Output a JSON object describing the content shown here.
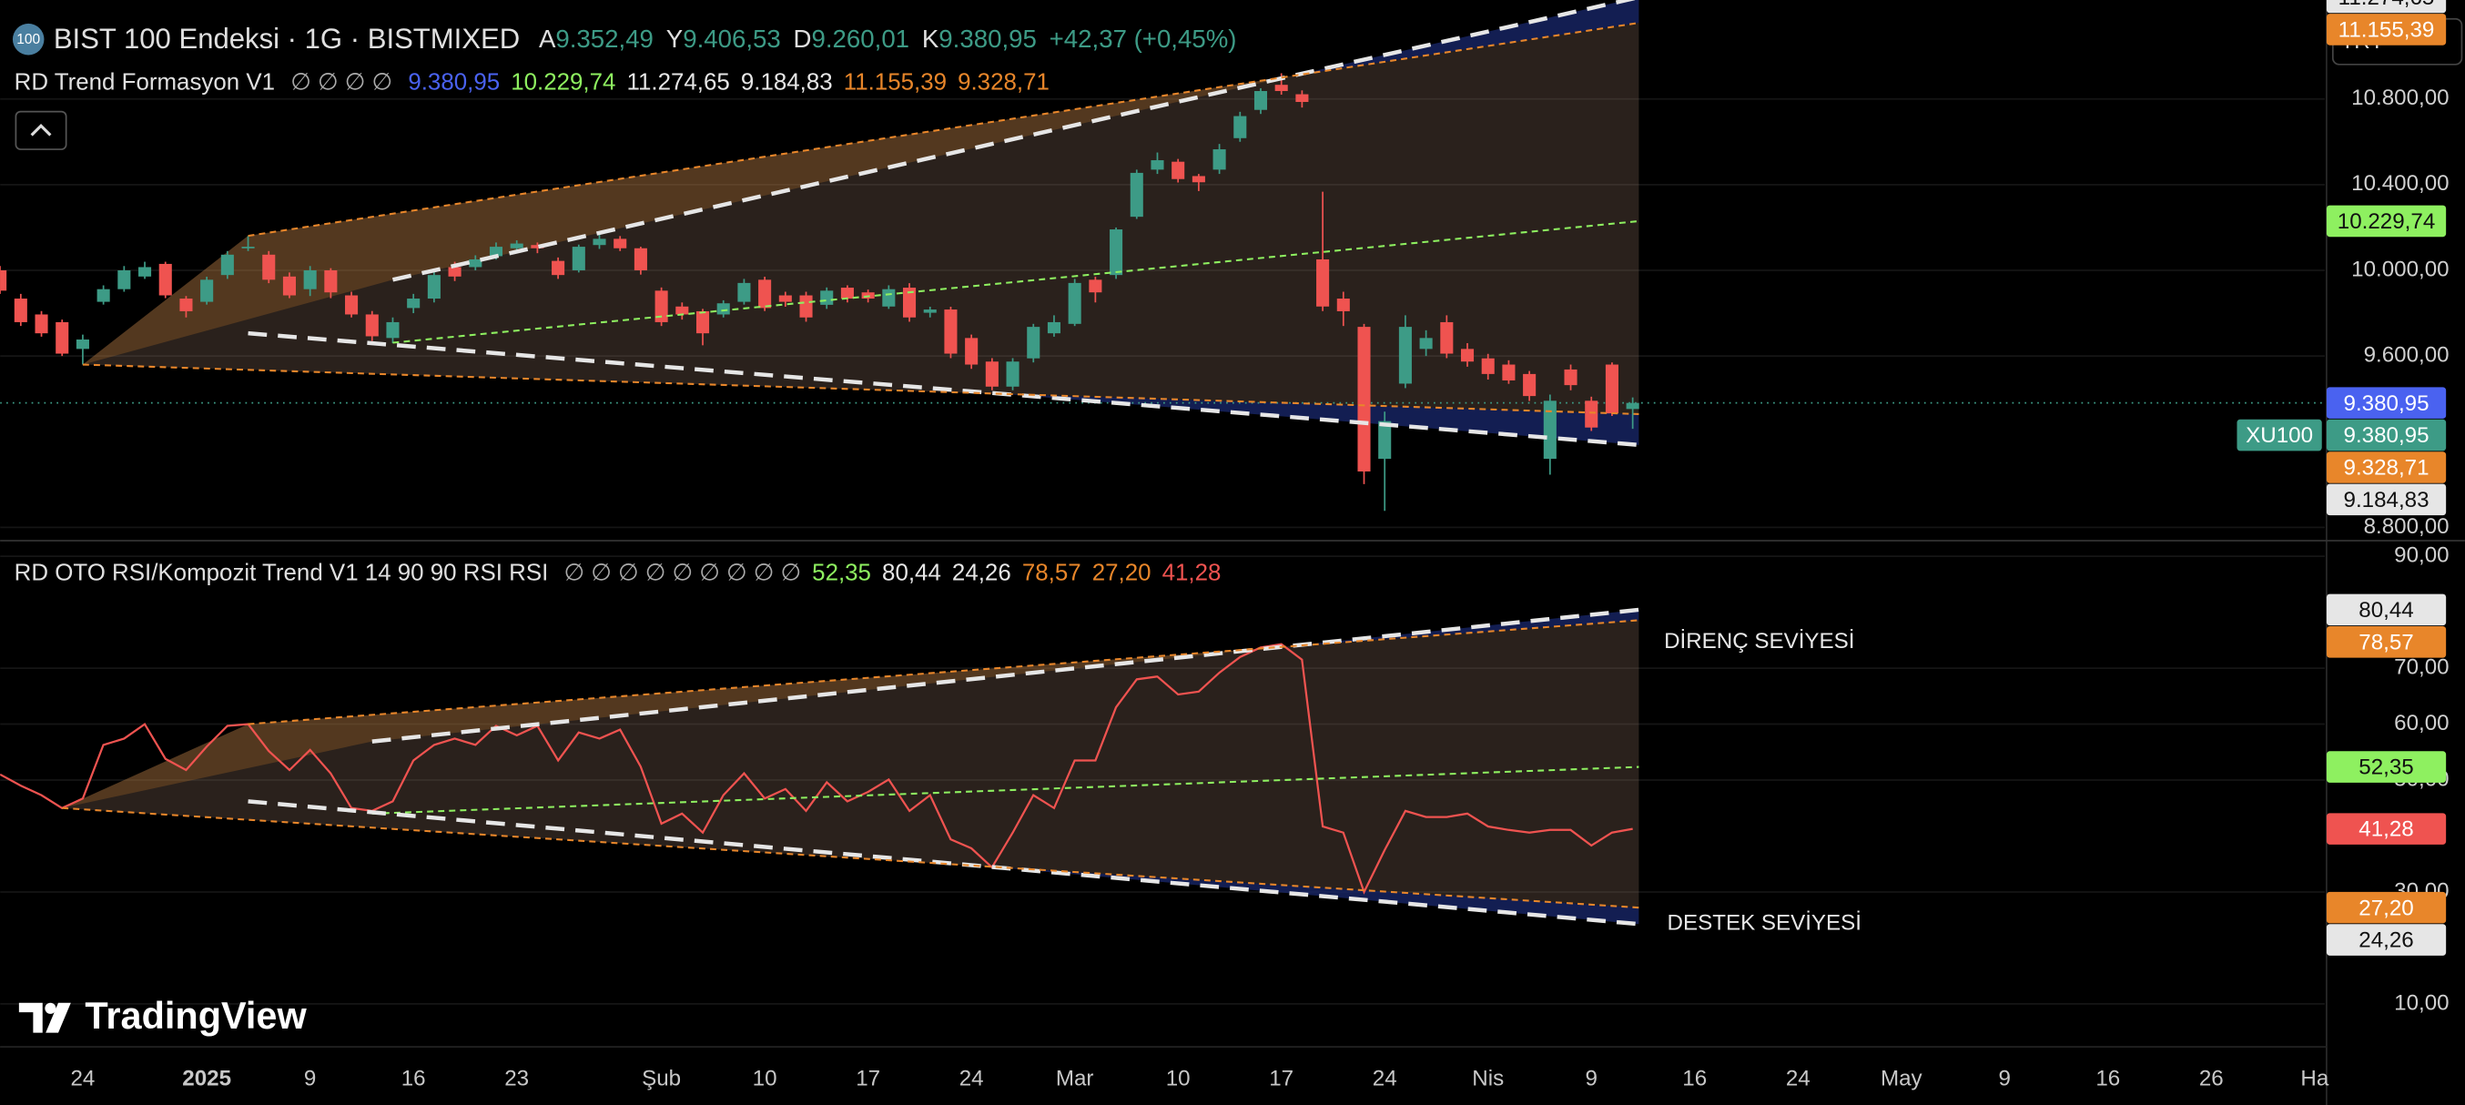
{
  "brand": "TradingView",
  "currency": "TRY",
  "chart_data": [
    {
      "type": "candlestick",
      "title": "BIST 100 Endeksi · 1G · BISTMIXED",
      "logo": "100",
      "ohlc_names": [
        "A",
        "Y",
        "D",
        "K"
      ],
      "ohlc_labels": [
        "9.352,49",
        "9.406,53",
        "9.260,01",
        "9.380,95"
      ],
      "change": "+42,37 (+0,45%)",
      "up_color": "#3d9b86",
      "down_color": "#ef5350",
      "xlim": [
        0,
        112.5
      ],
      "xticks": [
        {
          "value": 4,
          "label": "24"
        },
        {
          "value": 10,
          "label": "2025"
        },
        {
          "value": 15,
          "label": "9"
        },
        {
          "value": 20,
          "label": "16"
        },
        {
          "value": 25,
          "label": "23"
        },
        {
          "value": 32,
          "label": "Şub"
        },
        {
          "value": 37,
          "label": "10"
        },
        {
          "value": 42,
          "label": "17"
        },
        {
          "value": 47,
          "label": "24"
        },
        {
          "value": 52,
          "label": "Mar"
        },
        {
          "value": 57,
          "label": "10"
        },
        {
          "value": 62,
          "label": "17"
        },
        {
          "value": 67,
          "label": "24"
        },
        {
          "value": 72,
          "label": "Nis"
        },
        {
          "value": 77,
          "label": "9"
        },
        {
          "value": 82,
          "label": "16"
        },
        {
          "value": 87,
          "label": "24"
        },
        {
          "value": 92,
          "label": "May"
        },
        {
          "value": 97,
          "label": "9"
        },
        {
          "value": 102,
          "label": "16"
        },
        {
          "value": 107,
          "label": "26"
        },
        {
          "value": 112,
          "label": "Ha"
        }
      ],
      "ylim": [
        8745,
        11262
      ],
      "yticks": [
        {
          "value": 10800,
          "label": "10.800,00"
        },
        {
          "value": 10400,
          "label": "10.400,00"
        },
        {
          "value": 10000,
          "label": "10.000,00"
        },
        {
          "value": 9600,
          "label": "9.600,00"
        },
        {
          "value": 8800,
          "label": "8.800,00"
        }
      ],
      "grid": true,
      "ohlc": [
        [
          10000,
          10020,
          9890,
          9905
        ],
        [
          9868,
          9890,
          9740,
          9758
        ],
        [
          9794,
          9810,
          9690,
          9706
        ],
        [
          9758,
          9770,
          9600,
          9611
        ],
        [
          9633,
          9700,
          9560,
          9677
        ],
        [
          9853,
          9930,
          9840,
          9912
        ],
        [
          9912,
          10020,
          9900,
          10000
        ],
        [
          9971,
          10040,
          9960,
          10015
        ],
        [
          10030,
          10040,
          9870,
          9883
        ],
        [
          9868,
          9880,
          9780,
          9809
        ],
        [
          9853,
          9970,
          9840,
          9956
        ],
        [
          9978,
          10090,
          9960,
          10073
        ],
        [
          10103,
          10160,
          10090,
          10110
        ],
        [
          10073,
          10090,
          9940,
          9956
        ],
        [
          9971,
          9990,
          9870,
          9883
        ],
        [
          9912,
          10020,
          9880,
          10000
        ],
        [
          10000,
          10010,
          9870,
          9897
        ],
        [
          9883,
          9900,
          9780,
          9794
        ],
        [
          9794,
          9810,
          9670,
          9692
        ],
        [
          9684,
          9780,
          9660,
          9758
        ],
        [
          9824,
          9890,
          9800,
          9868
        ],
        [
          9868,
          10000,
          9850,
          9978
        ],
        [
          10015,
          10040,
          9950,
          9971
        ],
        [
          10015,
          10070,
          10000,
          10051
        ],
        [
          10066,
          10130,
          10050,
          10110
        ],
        [
          10103,
          10140,
          10090,
          10125
        ],
        [
          10118,
          10130,
          10080,
          10103
        ],
        [
          10044,
          10060,
          9960,
          9978
        ],
        [
          10000,
          10120,
          9990,
          10110
        ],
        [
          10118,
          10180,
          10100,
          10147
        ],
        [
          10147,
          10160,
          10090,
          10103
        ],
        [
          10103,
          10110,
          9980,
          10000
        ],
        [
          9905,
          9920,
          9740,
          9758
        ],
        [
          9831,
          9850,
          9770,
          9794
        ],
        [
          9809,
          9820,
          9650,
          9706
        ],
        [
          9794,
          9860,
          9780,
          9846
        ],
        [
          9853,
          9960,
          9840,
          9941
        ],
        [
          9956,
          9970,
          9810,
          9824
        ],
        [
          9883,
          9900,
          9830,
          9853
        ],
        [
          9883,
          9900,
          9760,
          9780
        ],
        [
          9839,
          9920,
          9820,
          9905
        ],
        [
          9919,
          9930,
          9850,
          9868
        ],
        [
          9897,
          9910,
          9850,
          9868
        ],
        [
          9831,
          9930,
          9820,
          9912
        ],
        [
          9919,
          9940,
          9760,
          9780
        ],
        [
          9802,
          9830,
          9780,
          9817
        ],
        [
          9817,
          9830,
          9590,
          9611
        ],
        [
          9684,
          9700,
          9540,
          9560
        ],
        [
          9574,
          9590,
          9440,
          9457
        ],
        [
          9457,
          9590,
          9440,
          9574
        ],
        [
          9589,
          9750,
          9570,
          9736
        ],
        [
          9706,
          9790,
          9690,
          9758
        ],
        [
          9750,
          9960,
          9740,
          9941
        ],
        [
          9956,
          9970,
          9850,
          9897
        ],
        [
          9978,
          10200,
          9960,
          10191
        ],
        [
          10250,
          10470,
          10240,
          10455
        ],
        [
          10470,
          10550,
          10450,
          10514
        ],
        [
          10507,
          10520,
          10410,
          10426
        ],
        [
          10440,
          10450,
          10370,
          10411
        ],
        [
          10470,
          10590,
          10450,
          10565
        ],
        [
          10617,
          10740,
          10600,
          10720
        ],
        [
          10749,
          10850,
          10730,
          10837
        ],
        [
          10866,
          10920,
          10820,
          10837
        ],
        [
          10822,
          10840,
          10760,
          10786
        ],
        [
          10051,
          10367,
          9810,
          9831
        ],
        [
          9868,
          9900,
          9740,
          9809
        ],
        [
          9736,
          9750,
          9002,
          9061
        ],
        [
          9120,
          9340,
          8877,
          9296
        ],
        [
          9471,
          9790,
          9450,
          9736
        ],
        [
          9633,
          9720,
          9600,
          9684
        ],
        [
          9758,
          9790,
          9590,
          9611
        ],
        [
          9633,
          9660,
          9550,
          9574
        ],
        [
          9589,
          9610,
          9490,
          9516
        ],
        [
          9560,
          9580,
          9470,
          9486
        ],
        [
          9516,
          9530,
          9390,
          9413
        ],
        [
          9120,
          9420,
          9046,
          9391
        ],
        [
          9537,
          9560,
          9440,
          9464
        ],
        [
          9391,
          9410,
          9250,
          9266
        ],
        [
          9560,
          9570,
          9320,
          9332
        ],
        [
          9352.49,
          9406.53,
          9260.01,
          9380.95
        ]
      ],
      "symbol": "XU100",
      "last_label": "9.380,95",
      "last_color": "#3d9b86",
      "indicator": {
        "name": "RD Trend Formasyon V1",
        "icons": "∅ ∅ ∅ ∅",
        "price": {
          "value": 9380.95,
          "label": "9.380,95",
          "color": "#4a62f0"
        },
        "lines": [
          {
            "x": [
              19,
              79.3
            ],
            "values": [
              9662,
              10229.74
            ],
            "label": "10.229,74",
            "color": "#8ef060",
            "style": "dotted"
          },
          {
            "x": [
              19,
              79.3
            ],
            "values": [
              9956,
              11274.65
            ],
            "label": "11.274,65",
            "color": "#e6e6e6",
            "style": "dashed"
          },
          {
            "x": [
              12,
              79.3
            ],
            "values": [
              9706,
              9184.83
            ],
            "label": "9.184,83",
            "color": "#e6e6e6",
            "style": "dashed"
          },
          {
            "x": [
              12,
              79.3
            ],
            "values": [
              10161,
              11155.39
            ],
            "label": "11.155,39",
            "color": "#e8862a",
            "style": "dotted"
          },
          {
            "x": [
              4,
              79.3
            ],
            "values": [
              9560,
              9328.71
            ],
            "label": "9.328,71",
            "color": "#e8862a",
            "style": "dotted"
          }
        ]
      }
    },
    {
      "type": "line",
      "title": "RD OTO RSI/Kompozit Trend V1 14 90 90 RSI RSI",
      "icons": "∅ ∅ ∅ ∅ ∅ ∅ ∅ ∅ ∅",
      "color": "#ef5350",
      "value_label": "41,28",
      "values": [
        51,
        49,
        47.3,
        45,
        46.7,
        56.3,
        57.4,
        60,
        53.8,
        51.8,
        56,
        59.7,
        60,
        55.2,
        51.8,
        55.4,
        51.2,
        45,
        44.5,
        46.2,
        53.5,
        56.3,
        57.4,
        56.3,
        59.7,
        58,
        59.7,
        53.5,
        58.5,
        57.4,
        59,
        52.4,
        42.2,
        44,
        40.6,
        47.3,
        51.2,
        46.7,
        48.4,
        44.5,
        49.6,
        46.2,
        47.9,
        50.1,
        44.5,
        47.3,
        39.4,
        37.8,
        34.4,
        40.6,
        47.3,
        45,
        53.5,
        53.5,
        63,
        68,
        68.5,
        65.3,
        65.8,
        69.2,
        72,
        73.7,
        74.3,
        71.5,
        41.7,
        40.6,
        30,
        37.5,
        44.5,
        43.4,
        43.4,
        44,
        41.7,
        41.1,
        40.6,
        41.1,
        41.1,
        38.3,
        40.6,
        41.28
      ],
      "ylim": [
        2.6,
        92.5
      ],
      "yticks": [
        {
          "value": 90,
          "label": "90,00"
        },
        {
          "value": 70,
          "label": "70,00"
        },
        {
          "value": 60,
          "label": "60,00"
        },
        {
          "value": 50,
          "label": "50,00"
        },
        {
          "value": 30,
          "label": "30,00"
        },
        {
          "value": 10,
          "label": "10,00"
        }
      ],
      "grid": true,
      "lines": [
        {
          "x": [
            18,
            79.3
          ],
          "values": [
            44,
            52.35
          ],
          "label": "52,35",
          "color": "#8ef060",
          "style": "dotted"
        },
        {
          "x": [
            18,
            79.3
          ],
          "values": [
            56.9,
            80.44
          ],
          "label": "80,44",
          "color": "#e6e6e6",
          "style": "dashed"
        },
        {
          "x": [
            12,
            79.3
          ],
          "values": [
            46.2,
            24.26
          ],
          "label": "24,26",
          "color": "#e6e6e6",
          "style": "dashed"
        },
        {
          "x": [
            12,
            79.3
          ],
          "values": [
            60,
            78.57
          ],
          "label": "78,57",
          "color": "#e8862a",
          "style": "dotted"
        },
        {
          "x": [
            3,
            79.3
          ],
          "values": [
            45,
            27.2
          ],
          "label": "27,20",
          "color": "#e8862a",
          "style": "dotted"
        }
      ],
      "annotations": [
        "DİRENÇ SEVİYESİ",
        "DESTEK SEVİYESİ"
      ]
    }
  ]
}
